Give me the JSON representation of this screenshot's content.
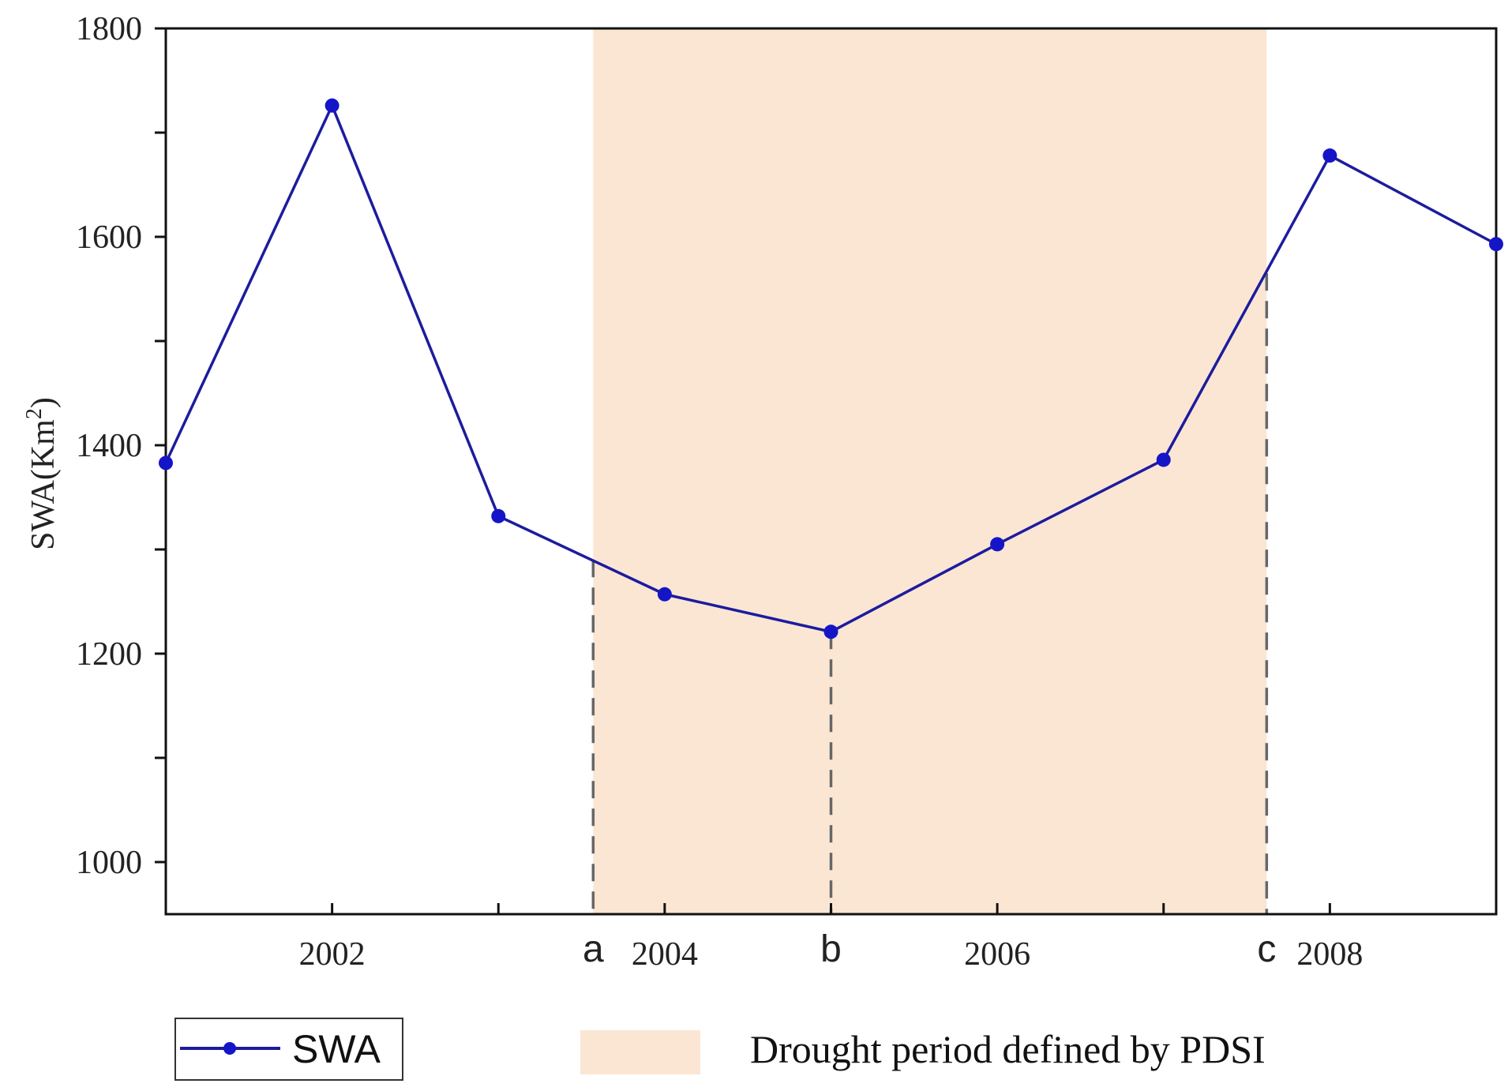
{
  "chart_data": {
    "type": "line",
    "title": "",
    "xlabel": "",
    "ylabel": "SWA(Km",
    "ylabel_superscript": "2",
    "ylabel_close": ")",
    "xlim": [
      2001,
      2009
    ],
    "ylim": [
      950,
      1800
    ],
    "x_ticks": [
      2001,
      2002,
      2003,
      2004,
      2005,
      2006,
      2007,
      2008,
      2009
    ],
    "x_tick_labels": [
      {
        "x": 2002,
        "label": "2002"
      },
      {
        "x": 2004,
        "label": "2004"
      },
      {
        "x": 2006,
        "label": "2006"
      },
      {
        "x": 2008,
        "label": "2008"
      }
    ],
    "y_ticks": [
      1000,
      1100,
      1200,
      1300,
      1400,
      1500,
      1600,
      1700,
      1800
    ],
    "y_tick_labels": [
      {
        "y": 1000,
        "label": "1000"
      },
      {
        "y": 1200,
        "label": "1200"
      },
      {
        "y": 1400,
        "label": "1400"
      },
      {
        "y": 1600,
        "label": "1600"
      },
      {
        "y": 1800,
        "label": "1800"
      }
    ],
    "series": [
      {
        "name": "SWA",
        "color": "#1c1c9e",
        "marker_color": "#1515c8",
        "x": [
          2001,
          2002,
          2003,
          2004,
          2005,
          2006,
          2007,
          2008,
          2009
        ],
        "values": [
          1383,
          1726,
          1332,
          1257,
          1221,
          1305,
          1386,
          1678,
          1593
        ]
      }
    ],
    "shaded_region": {
      "label": "Drought period defined by PDSI",
      "x_start": 2003.57,
      "x_end": 2007.62,
      "color": "#fbe6d4"
    },
    "markers": [
      {
        "label": "a",
        "x": 2003.57,
        "y": 1290
      },
      {
        "label": "b",
        "x": 2005.0,
        "y": 1221
      },
      {
        "label": "c",
        "x": 2007.62,
        "y": 1565
      }
    ],
    "legend": {
      "placement": "bottom",
      "entries": [
        {
          "label": "SWA",
          "kind": "line-marker"
        },
        {
          "label": "Drought period defined by PDSI",
          "kind": "area"
        }
      ]
    },
    "grid": false
  }
}
